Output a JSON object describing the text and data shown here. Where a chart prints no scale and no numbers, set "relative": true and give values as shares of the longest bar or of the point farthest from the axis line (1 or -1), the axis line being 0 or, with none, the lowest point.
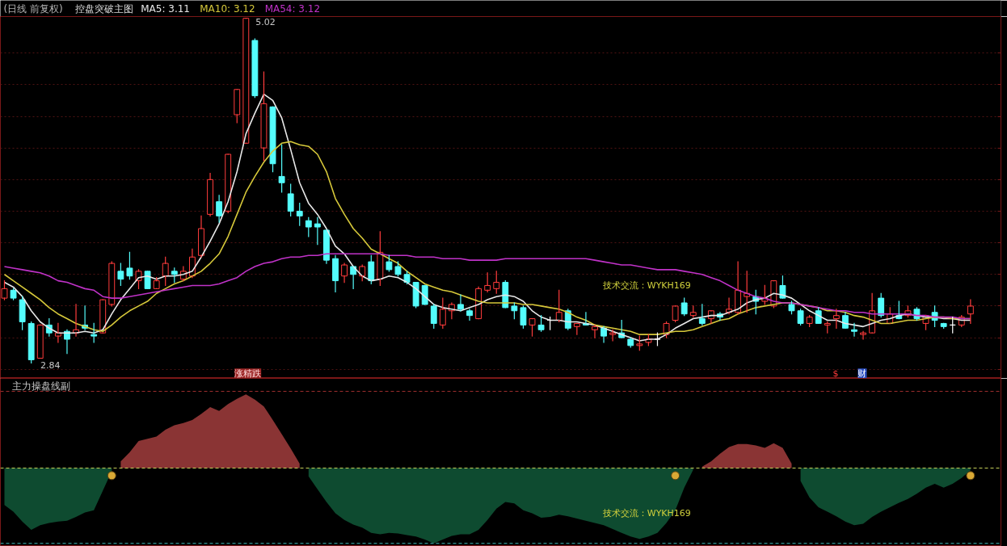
{
  "chart_data": [
    {
      "type": "candlestick",
      "title": "(日线 前复权)",
      "subtitle": "控盘突破主图",
      "categories": [
        null,
        null,
        null,
        null,
        null,
        null,
        null,
        null,
        null,
        null,
        null,
        null,
        null,
        null,
        null,
        null,
        null,
        null,
        null,
        null,
        null,
        null,
        null,
        null,
        null,
        null,
        null,
        null,
        null,
        null,
        null,
        null,
        null,
        null,
        null,
        null,
        null,
        null,
        null,
        null,
        null,
        null,
        null,
        null,
        null,
        null,
        null,
        null,
        null,
        null,
        null,
        null,
        null,
        null,
        null,
        null,
        null,
        null,
        null,
        null,
        null,
        null,
        null,
        null,
        null,
        null,
        null,
        null,
        null,
        null,
        null,
        null,
        null,
        null,
        null,
        null,
        null,
        null,
        null,
        null,
        null,
        null,
        null,
        null,
        null,
        null,
        null,
        null,
        null,
        null,
        null,
        null,
        null,
        null,
        null,
        null,
        null,
        null,
        null,
        null,
        null,
        null,
        null,
        null,
        null,
        null,
        null,
        null,
        null
      ],
      "ohlc": [
        [
          3.25,
          3.36,
          3.24,
          3.31
        ],
        [
          3.3,
          3.31,
          3.24,
          3.25
        ],
        [
          3.24,
          3.26,
          3.05,
          3.1
        ],
        [
          3.09,
          3.1,
          2.84,
          2.86
        ],
        [
          2.87,
          3.08,
          2.87,
          3.08
        ],
        [
          3.08,
          3.12,
          3.01,
          3.03
        ],
        [
          3.01,
          3.09,
          2.97,
          3.03
        ],
        [
          3.04,
          3.05,
          2.9,
          2.99
        ],
        [
          3.03,
          3.21,
          3.01,
          3.05
        ],
        [
          3.08,
          3.2,
          3.05,
          3.06
        ],
        [
          3.02,
          3.09,
          2.97,
          3.01
        ],
        [
          3.03,
          3.24,
          3.03,
          3.24
        ],
        [
          3.21,
          3.48,
          3.2,
          3.47
        ],
        [
          3.42,
          3.47,
          3.33,
          3.37
        ],
        [
          3.44,
          3.54,
          3.37,
          3.39
        ],
        [
          3.36,
          3.43,
          3.31,
          3.42
        ],
        [
          3.42,
          3.42,
          3.31,
          3.31
        ],
        [
          3.31,
          3.38,
          3.31,
          3.36
        ],
        [
          3.39,
          3.51,
          3.33,
          3.47
        ],
        [
          3.42,
          3.44,
          3.35,
          3.4
        ],
        [
          3.37,
          3.45,
          3.36,
          3.42
        ],
        [
          3.39,
          3.56,
          3.38,
          3.51
        ],
        [
          3.52,
          3.77,
          3.51,
          3.69
        ],
        [
          3.78,
          4.04,
          3.77,
          4.0
        ],
        [
          3.86,
          3.9,
          3.73,
          3.77
        ],
        [
          3.8,
          4.16,
          3.79,
          4.16
        ],
        [
          4.41,
          4.57,
          4.36,
          4.57
        ],
        [
          4.23,
          5.02,
          4.23,
          5.02
        ],
        [
          4.88,
          4.89,
          4.52,
          4.53
        ],
        [
          4.2,
          4.68,
          4.12,
          4.48
        ],
        [
          4.46,
          4.46,
          4.05,
          4.1
        ],
        [
          4.02,
          4.22,
          3.92,
          3.98
        ],
        [
          3.91,
          3.97,
          3.77,
          3.8
        ],
        [
          3.8,
          3.85,
          3.71,
          3.77
        ],
        [
          3.74,
          3.76,
          3.64,
          3.7
        ],
        [
          3.72,
          3.76,
          3.59,
          3.7
        ],
        [
          3.68,
          3.68,
          3.47,
          3.49
        ],
        [
          3.5,
          3.52,
          3.29,
          3.36
        ],
        [
          3.39,
          3.47,
          3.35,
          3.46
        ],
        [
          3.45,
          3.45,
          3.31,
          3.4
        ],
        [
          3.39,
          3.46,
          3.36,
          3.45
        ],
        [
          3.48,
          3.52,
          3.34,
          3.36
        ],
        [
          3.37,
          3.67,
          3.33,
          3.54
        ],
        [
          3.48,
          3.52,
          3.42,
          3.43
        ],
        [
          3.45,
          3.48,
          3.39,
          3.4
        ],
        [
          3.4,
          3.42,
          3.34,
          3.35
        ],
        [
          3.35,
          3.35,
          3.19,
          3.2
        ],
        [
          3.33,
          3.33,
          3.21,
          3.21
        ],
        [
          3.2,
          3.21,
          3.06,
          3.09
        ],
        [
          3.08,
          3.25,
          3.06,
          3.18
        ],
        [
          3.17,
          3.22,
          3.12,
          3.21
        ],
        [
          3.21,
          3.27,
          3.17,
          3.18
        ],
        [
          3.17,
          3.18,
          3.11,
          3.14
        ],
        [
          3.12,
          3.32,
          3.12,
          3.31
        ],
        [
          3.3,
          3.41,
          3.29,
          3.33
        ],
        [
          3.31,
          3.42,
          3.28,
          3.35
        ],
        [
          3.35,
          3.36,
          3.19,
          3.19
        ],
        [
          3.2,
          3.22,
          3.12,
          3.17
        ],
        [
          3.19,
          3.2,
          3.06,
          3.08
        ],
        [
          3.08,
          3.12,
          3.01,
          3.12
        ],
        [
          3.08,
          3.14,
          3.04,
          3.05
        ],
        [
          3.11,
          3.13,
          3.05,
          3.11
        ],
        [
          3.11,
          3.3,
          3.1,
          3.16
        ],
        [
          3.17,
          3.18,
          3.05,
          3.06
        ],
        [
          3.07,
          3.09,
          3.02,
          3.09
        ],
        [
          3.09,
          3.16,
          3.08,
          3.08
        ],
        [
          3.05,
          3.08,
          3.0,
          3.07
        ],
        [
          3.06,
          3.07,
          2.97,
          3.01
        ],
        [
          3.02,
          3.05,
          2.98,
          3.03
        ],
        [
          3.03,
          3.11,
          3.0,
          3.0
        ],
        [
          2.99,
          3.0,
          2.94,
          2.95
        ],
        [
          2.95,
          3.01,
          2.92,
          2.96
        ],
        [
          2.97,
          3.02,
          2.95,
          2.99
        ],
        [
          2.99,
          3.03,
          2.95,
          2.99
        ],
        [
          3.02,
          3.1,
          3.0,
          3.09
        ],
        [
          3.11,
          3.2,
          3.1,
          3.2
        ],
        [
          3.22,
          3.25,
          3.14,
          3.15
        ],
        [
          3.14,
          3.2,
          3.13,
          3.16
        ],
        [
          3.12,
          3.21,
          3.08,
          3.09
        ],
        [
          3.12,
          3.17,
          3.09,
          3.17
        ],
        [
          3.15,
          3.16,
          3.11,
          3.13
        ],
        [
          3.16,
          3.25,
          3.15,
          3.18
        ],
        [
          3.16,
          3.48,
          3.15,
          3.3
        ],
        [
          3.26,
          3.42,
          3.16,
          3.28
        ],
        [
          3.26,
          3.3,
          3.15,
          3.23
        ],
        [
          3.23,
          3.33,
          3.21,
          3.25
        ],
        [
          3.2,
          3.36,
          3.19,
          3.36
        ],
        [
          3.33,
          3.39,
          3.25,
          3.25
        ],
        [
          3.21,
          3.23,
          3.15,
          3.17
        ],
        [
          3.17,
          3.18,
          3.08,
          3.09
        ],
        [
          3.09,
          3.14,
          3.07,
          3.13
        ],
        [
          3.17,
          3.19,
          3.09,
          3.09
        ],
        [
          3.08,
          3.1,
          3.03,
          3.09
        ],
        [
          3.12,
          3.18,
          3.06,
          3.14
        ],
        [
          3.14,
          3.16,
          3.06,
          3.06
        ],
        [
          3.05,
          3.09,
          3.01,
          3.04
        ],
        [
          3.02,
          3.04,
          2.99,
          3.03
        ],
        [
          3.03,
          3.28,
          3.03,
          3.17
        ],
        [
          3.25,
          3.28,
          3.13,
          3.14
        ],
        [
          3.09,
          3.19,
          3.09,
          3.15
        ],
        [
          3.14,
          3.23,
          3.12,
          3.12
        ],
        [
          3.14,
          3.2,
          3.13,
          3.17
        ],
        [
          3.18,
          3.19,
          3.11,
          3.12
        ],
        [
          3.09,
          3.14,
          3.05,
          3.14
        ],
        [
          3.16,
          3.2,
          3.07,
          3.11
        ],
        [
          3.09,
          3.09,
          3.06,
          3.07
        ],
        [
          3.08,
          3.13,
          3.03,
          3.08
        ],
        [
          3.08,
          3.14,
          3.07,
          3.13
        ],
        [
          3.15,
          3.24,
          3.09,
          3.2
        ]
      ],
      "colors": [
        "#ff3c3c",
        "#54fcfc",
        "#54fcfc",
        "#54fcfc",
        "#ff3c3c",
        "#54fcfc",
        "#ff3c3c",
        "#54fcfc",
        "#ff3c3c",
        "#54fcfc",
        "#54fcfc",
        "#ff3c3c",
        "#ff3c3c",
        "#54fcfc",
        "#54fcfc",
        "#ff3c3c",
        "#54fcfc",
        "#ff3c3c",
        "#ff3c3c",
        "#54fcfc",
        "#ff3c3c",
        "#ff3c3c",
        "#ff3c3c",
        "#ff3c3c",
        "#54fcfc",
        "#ff3c3c",
        "#ff3c3c",
        "#ff3c3c",
        "#54fcfc",
        "#ff3c3c",
        "#54fcfc",
        "#54fcfc",
        "#54fcfc",
        "#54fcfc",
        "#54fcfc",
        "#54fcfc",
        "#54fcfc",
        "#54fcfc",
        "#ff3c3c",
        "#54fcfc",
        "#ff3c3c",
        "#54fcfc",
        "#ff3c3c",
        "#54fcfc",
        "#54fcfc",
        "#54fcfc",
        "#54fcfc",
        "#54fcfc",
        "#54fcfc",
        "#ff3c3c",
        "#ff3c3c",
        "#54fcfc",
        "#54fcfc",
        "#ff3c3c",
        "#ff3c3c",
        "#ff3c3c",
        "#54fcfc",
        "#54fcfc",
        "#54fcfc",
        "#ff3c3c",
        "#54fcfc",
        "#ffffff",
        "#ff3c3c",
        "#54fcfc",
        "#ff3c3c",
        "#54fcfc",
        "#ff3c3c",
        "#54fcfc",
        "#ff3c3c",
        "#54fcfc",
        "#54fcfc",
        "#ff3c3c",
        "#ff3c3c",
        "#ffffff",
        "#ff3c3c",
        "#ff3c3c",
        "#54fcfc",
        "#ff3c3c",
        "#54fcfc",
        "#ff3c3c",
        "#54fcfc",
        "#ff3c3c",
        "#ff3c3c",
        "#ff3c3c",
        "#54fcfc",
        "#ff3c3c",
        "#ff3c3c",
        "#54fcfc",
        "#54fcfc",
        "#54fcfc",
        "#ff3c3c",
        "#54fcfc",
        "#ff3c3c",
        "#ff3c3c",
        "#54fcfc",
        "#54fcfc",
        "#ff3c3c",
        "#ff3c3c",
        "#54fcfc",
        "#ff3c3c",
        "#54fcfc",
        "#ff3c3c",
        "#54fcfc",
        "#ff3c3c",
        "#54fcfc",
        "#54fcfc",
        "#ffffff",
        "#ff3c3c",
        "#ff3c3c"
      ],
      "series": [
        {
          "name": "MA5: 3.11",
          "color": "#e8e8e8",
          "type": "line",
          "values": [
            3.35,
            3.32,
            3.26,
            3.17,
            3.1,
            3.06,
            3.03,
            3.03,
            3.03,
            3.04,
            3.03,
            3.05,
            3.15,
            3.24,
            3.31,
            3.38,
            3.39,
            3.37,
            3.39,
            3.39,
            3.4,
            3.42,
            3.51,
            3.61,
            3.72,
            3.86,
            4.05,
            4.29,
            4.42,
            4.54,
            4.5,
            4.39,
            4.19,
            3.98,
            3.85,
            3.78,
            3.69,
            3.58,
            3.53,
            3.45,
            3.39,
            3.36,
            3.37,
            3.39,
            3.38,
            3.35,
            3.31,
            3.26,
            3.21,
            3.19,
            3.18,
            3.17,
            3.19,
            3.21,
            3.24,
            3.26,
            3.27,
            3.26,
            3.23,
            3.17,
            3.13,
            3.11,
            3.11,
            3.1,
            3.1,
            3.09,
            3.08,
            3.06,
            3.04,
            3.02,
            3.0,
            2.98,
            2.99,
            2.99,
            3.02,
            3.06,
            3.09,
            3.12,
            3.13,
            3.14,
            3.14,
            3.16,
            3.18,
            3.22,
            3.24,
            3.25,
            3.28,
            3.27,
            3.25,
            3.21,
            3.17,
            3.14,
            3.11,
            3.11,
            3.09,
            3.08,
            3.07,
            3.09,
            3.11,
            3.12,
            3.14,
            3.15,
            3.14,
            3.13,
            3.13,
            3.12,
            3.12,
            3.11,
            3.11
          ]
        },
        {
          "name": "MA10: 3.12",
          "color": "#d6c83a",
          "type": "line",
          "values": [
            3.4,
            3.36,
            3.32,
            3.28,
            3.24,
            3.19,
            3.15,
            3.12,
            3.09,
            3.07,
            3.05,
            3.04,
            3.08,
            3.13,
            3.17,
            3.2,
            3.23,
            3.28,
            3.31,
            3.34,
            3.36,
            3.39,
            3.42,
            3.47,
            3.53,
            3.64,
            3.78,
            3.92,
            4.02,
            4.11,
            4.18,
            4.23,
            4.24,
            4.22,
            4.21,
            4.16,
            4.05,
            3.88,
            3.78,
            3.69,
            3.63,
            3.56,
            3.53,
            3.5,
            3.47,
            3.42,
            3.38,
            3.34,
            3.32,
            3.3,
            3.29,
            3.27,
            3.25,
            3.23,
            3.22,
            3.22,
            3.22,
            3.22,
            3.21,
            3.21,
            3.2,
            3.19,
            3.18,
            3.16,
            3.13,
            3.11,
            3.08,
            3.07,
            3.06,
            3.05,
            3.04,
            3.02,
            3.02,
            3.02,
            3.03,
            3.04,
            3.04,
            3.05,
            3.07,
            3.09,
            3.11,
            3.12,
            3.15,
            3.17,
            3.19,
            3.2,
            3.21,
            3.22,
            3.22,
            3.21,
            3.2,
            3.19,
            3.17,
            3.17,
            3.16,
            3.14,
            3.13,
            3.11,
            3.09,
            3.09,
            3.1,
            3.11,
            3.11,
            3.12,
            3.13,
            3.13,
            3.12,
            3.12,
            3.12
          ]
        },
        {
          "name": "MA54: 3.12",
          "color": "#c032c8",
          "type": "line",
          "values": [
            3.45,
            3.44,
            3.43,
            3.42,
            3.41,
            3.39,
            3.36,
            3.35,
            3.33,
            3.31,
            3.3,
            3.26,
            3.25,
            3.25,
            3.26,
            3.27,
            3.28,
            3.29,
            3.3,
            3.31,
            3.32,
            3.33,
            3.33,
            3.33,
            3.34,
            3.36,
            3.38,
            3.42,
            3.45,
            3.47,
            3.48,
            3.5,
            3.51,
            3.51,
            3.52,
            3.52,
            3.53,
            3.53,
            3.53,
            3.53,
            3.53,
            3.53,
            3.53,
            3.52,
            3.52,
            3.52,
            3.51,
            3.51,
            3.51,
            3.5,
            3.5,
            3.5,
            3.49,
            3.49,
            3.49,
            3.49,
            3.5,
            3.5,
            3.5,
            3.5,
            3.5,
            3.5,
            3.5,
            3.5,
            3.5,
            3.5,
            3.49,
            3.48,
            3.47,
            3.46,
            3.46,
            3.45,
            3.44,
            3.43,
            3.43,
            3.43,
            3.42,
            3.41,
            3.4,
            3.38,
            3.36,
            3.33,
            3.3,
            3.28,
            3.26,
            3.25,
            3.23,
            3.22,
            3.22,
            3.21,
            3.2,
            3.19,
            3.18,
            3.17,
            3.17,
            3.16,
            3.16,
            3.15,
            3.15,
            3.15,
            3.15,
            3.15,
            3.14,
            3.14,
            3.13,
            3.13,
            3.13,
            3.12,
            3.12
          ]
        }
      ],
      "yticks": [
        {
          "value": 2.8,
          "label": null
        },
        {
          "value": 3.0,
          "label": null
        },
        {
          "value": 3.2,
          "label": null
        },
        {
          "value": 3.4,
          "label": null
        },
        {
          "value": 3.6,
          "label": null
        },
        {
          "value": 3.8,
          "label": null
        },
        {
          "value": 4.0,
          "label": null
        },
        {
          "value": 4.2,
          "label": null
        },
        {
          "value": 4.4,
          "label": null
        },
        {
          "value": 4.6,
          "label": null
        },
        {
          "value": 4.8,
          "label": null
        }
      ],
      "grid": "y",
      "legend": "top left",
      "tick_labels": false,
      "annotations": [
        "5.02",
        "2.84",
        "技术交流：WYKH169",
        "涨精跌",
        "$",
        "财"
      ]
    },
    {
      "type": "area",
      "title": "主力操盘线副",
      "relative": true,
      "tick_labels": false,
      "categories": [
        null,
        null,
        null,
        null,
        null,
        null,
        null,
        null,
        null,
        null,
        null,
        null,
        null,
        null,
        null,
        null,
        null,
        null,
        null,
        null,
        null,
        null,
        null,
        null,
        null,
        null,
        null,
        null,
        null,
        null,
        null,
        null,
        null,
        null,
        null,
        null,
        null,
        null,
        null,
        null,
        null,
        null,
        null,
        null,
        null,
        null,
        null,
        null,
        null,
        null,
        null,
        null,
        null,
        null,
        null,
        null,
        null,
        null,
        null,
        null,
        null,
        null,
        null,
        null,
        null,
        null,
        null,
        null,
        null,
        null,
        null,
        null,
        null,
        null,
        null,
        null,
        null,
        null,
        null,
        null,
        null,
        null,
        null,
        null,
        null,
        null,
        null,
        null,
        null,
        null,
        null,
        null,
        null,
        null,
        null,
        null,
        null,
        null,
        null,
        null,
        null,
        null,
        null,
        null,
        null,
        null,
        null,
        null,
        null
      ],
      "series": [
        {
          "type": "area",
          "color": "#8a3434",
          "values": [
            null,
            null,
            null,
            null,
            null,
            null,
            null,
            null,
            null,
            null,
            null,
            null,
            null,
            0.09,
            0.21,
            0.36,
            0.39,
            0.42,
            0.51,
            0.57,
            0.6,
            0.64,
            0.72,
            0.81,
            0.76,
            0.85,
            0.92,
            0.98,
            0.91,
            0.82,
            0.64,
            0.45,
            0.26,
            0.06,
            null,
            null,
            null,
            null,
            null,
            null,
            null,
            null,
            null,
            null,
            null,
            null,
            null,
            null,
            null,
            null,
            null,
            null,
            null,
            null,
            null,
            null,
            null,
            null,
            null,
            null,
            null,
            null,
            null,
            null,
            null,
            null,
            null,
            null,
            null,
            null,
            null,
            null,
            null,
            null,
            null,
            null,
            null,
            null,
            0.02,
            0.09,
            0.19,
            0.28,
            0.32,
            0.32,
            0.3,
            0.27,
            0.33,
            0.27,
            0.06,
            null,
            null,
            null,
            null,
            null,
            null,
            null,
            null,
            null,
            null,
            null,
            null,
            null,
            null,
            null,
            null,
            null,
            null,
            null,
            null
          ]
        },
        {
          "type": "area",
          "color": "#0e4b30",
          "values": [
            -0.49,
            -0.58,
            -0.71,
            -0.82,
            -0.76,
            -0.73,
            -0.71,
            -0.7,
            -0.65,
            -0.59,
            -0.56,
            -0.3,
            -0.04,
            null,
            null,
            null,
            null,
            null,
            null,
            null,
            null,
            null,
            null,
            null,
            null,
            null,
            null,
            null,
            null,
            null,
            null,
            null,
            null,
            null,
            -0.11,
            -0.28,
            -0.45,
            -0.6,
            -0.69,
            -0.75,
            -0.79,
            -0.86,
            -0.88,
            -0.86,
            -0.87,
            -0.89,
            -0.91,
            -0.95,
            -1.0,
            -0.95,
            -0.9,
            -0.88,
            -0.88,
            -0.82,
            -0.69,
            -0.54,
            -0.45,
            -0.47,
            -0.56,
            -0.6,
            -0.66,
            -0.65,
            -0.62,
            -0.64,
            -0.67,
            -0.7,
            -0.73,
            -0.76,
            -0.81,
            -0.86,
            -0.91,
            -0.94,
            -0.91,
            -0.86,
            -0.73,
            -0.56,
            -0.26,
            -0.02,
            null,
            null,
            null,
            null,
            null,
            null,
            null,
            null,
            null,
            null,
            null,
            -0.17,
            -0.39,
            -0.52,
            -0.58,
            -0.64,
            -0.71,
            -0.76,
            -0.74,
            -0.65,
            -0.58,
            -0.52,
            -0.46,
            -0.41,
            -0.34,
            -0.26,
            -0.21,
            -0.26,
            -0.21,
            -0.13,
            -0.03
          ]
        },
        {
          "type": "scatter",
          "color": "#d9a935",
          "marker": "circle",
          "values": [
            null,
            null,
            null,
            null,
            null,
            null,
            null,
            null,
            null,
            null,
            null,
            null,
            -0.1,
            null,
            null,
            null,
            null,
            null,
            null,
            null,
            null,
            null,
            null,
            null,
            null,
            null,
            null,
            null,
            null,
            null,
            null,
            null,
            null,
            null,
            null,
            null,
            null,
            null,
            null,
            null,
            null,
            null,
            null,
            null,
            null,
            null,
            null,
            null,
            null,
            null,
            null,
            null,
            null,
            null,
            null,
            null,
            null,
            null,
            null,
            null,
            null,
            null,
            null,
            null,
            null,
            null,
            null,
            null,
            null,
            null,
            null,
            null,
            null,
            null,
            null,
            -0.1,
            null,
            null,
            null,
            null,
            null,
            null,
            null,
            null,
            null,
            null,
            null,
            null,
            null,
            null,
            null,
            null,
            null,
            null,
            null,
            null,
            null,
            null,
            null,
            null,
            null,
            null,
            null,
            null,
            null,
            null,
            null,
            null,
            -0.1
          ]
        }
      ],
      "ref_lines": [
        {
          "axis": "y",
          "value": 1.02,
          "color": "#9b2d2d",
          "line_style": "dashed"
        },
        {
          "axis": "y",
          "value": 0,
          "color": "#c8d25a",
          "line_style": "dashed"
        },
        {
          "axis": "y",
          "value": -1.0,
          "color": "#3fb8b8",
          "line_style": "dashed"
        }
      ],
      "annotations": [
        "技术交流：WYKH169"
      ]
    }
  ]
}
